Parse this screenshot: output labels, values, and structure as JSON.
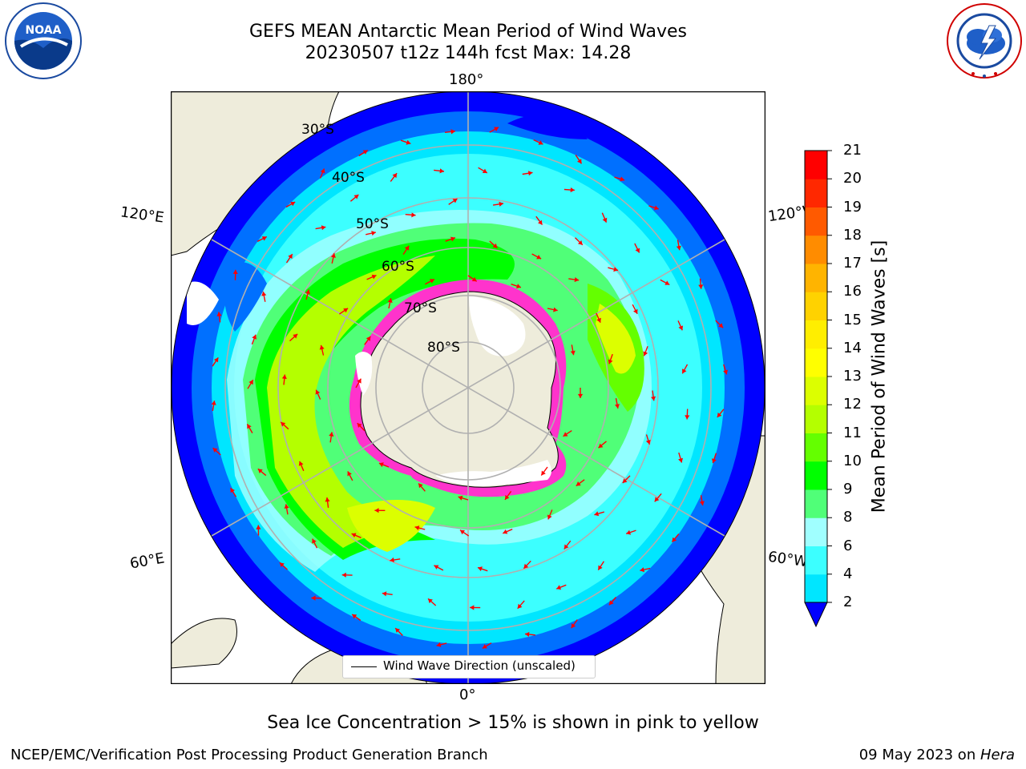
{
  "title": {
    "line1": "GEFS MEAN Antarctic Mean Period of Wind Waves",
    "line2": "20230507 t12z 144h fcst   Max: 14.28"
  },
  "logos": {
    "left": {
      "icon": "noaa-logo",
      "text": "NOAA",
      "ring_text": "NATIONAL OCEANIC AND ATMOSPHERIC ADMINISTRATION · U.S. DEPARTMENT OF COMMERCE"
    },
    "right": {
      "icon": "nws-logo",
      "ring_text": "NATIONAL WEATHER SERVICE"
    }
  },
  "map": {
    "projection": "south-polar-stereographic",
    "longitude_labels": {
      "top": "180°",
      "bottom": "0°",
      "left_upper": "120°E",
      "left_lower": "60°E",
      "right_upper": "120°W",
      "right_lower": "60°W"
    },
    "latitude_labels": [
      "30°S",
      "40°S",
      "50°S",
      "60°S",
      "70°S",
      "80°S"
    ],
    "colors": {
      "land": "#eeecdb",
      "ice_edge": "#ff33cc",
      "arrow": "#ff0000",
      "grid": "#b0b0b0"
    },
    "legend": {
      "label": "Wind Wave Direction (unscaled)"
    }
  },
  "colorbar": {
    "label": "Mean Period of Wind Waves [s]",
    "ticks": [
      "2",
      "4",
      "6",
      "8",
      "9",
      "10",
      "11",
      "12",
      "13",
      "14",
      "15",
      "16",
      "17",
      "18",
      "19",
      "20",
      "21"
    ],
    "colors": [
      "#0070ff",
      "#00e6ff",
      "#3cffff",
      "#a0ffff",
      "#50ff78",
      "#00ff00",
      "#64ff00",
      "#b4ff00",
      "#dcff00",
      "#ffff00",
      "#ffee00",
      "#ffd200",
      "#ffb400",
      "#ff8c00",
      "#ff5a00",
      "#ff2800",
      "#ff0000"
    ],
    "under_color": "#0000ff"
  },
  "caption": "Sea Ice Concentration > 15% is shown in pink to yellow",
  "footer": {
    "left": "NCEP/EMC/Verification Post Processing Product Generation Branch",
    "right_date": "09 May 2023 on ",
    "right_host": "Hera"
  }
}
